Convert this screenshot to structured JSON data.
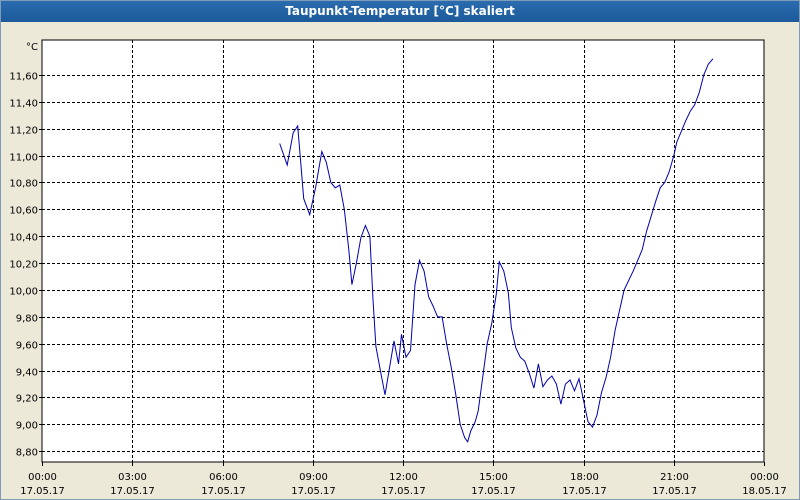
{
  "window": {
    "title": "Taupunkt-Temperatur [°C] skaliert"
  },
  "colors": {
    "line": "#0000b0",
    "plot_bg": "#ffffff",
    "grid": "#000000",
    "title_bg": "#1f5f9f"
  },
  "chart_data": {
    "type": "line",
    "title": "Taupunkt-Temperatur [°C] skaliert",
    "ylabel": "°C",
    "xlabel": "",
    "grid": true,
    "ylim": [
      8.72,
      11.86
    ],
    "xlim": [
      0,
      24
    ],
    "y_ticks": [
      "8,80",
      "9,00",
      "9,20",
      "9,40",
      "9,60",
      "9,80",
      "10,00",
      "10,20",
      "10,40",
      "10,60",
      "10,80",
      "11,00",
      "11,20",
      "11,40",
      "11,60"
    ],
    "y_tick_values": [
      8.8,
      9.0,
      9.2,
      9.4,
      9.6,
      9.8,
      10.0,
      10.2,
      10.4,
      10.6,
      10.8,
      11.0,
      11.2,
      11.4,
      11.6
    ],
    "x_ticks": [
      {
        "time": "00:00",
        "date": "17.05.17",
        "hour": 0
      },
      {
        "time": "03:00",
        "date": "17.05.17",
        "hour": 3
      },
      {
        "time": "06:00",
        "date": "17.05.17",
        "hour": 6
      },
      {
        "time": "09:00",
        "date": "17.05.17",
        "hour": 9
      },
      {
        "time": "12:00",
        "date": "17.05.17",
        "hour": 12
      },
      {
        "time": "15:00",
        "date": "17.05.17",
        "hour": 15
      },
      {
        "time": "18:00",
        "date": "17.05.17",
        "hour": 18
      },
      {
        "time": "21:00",
        "date": "17.05.17",
        "hour": 21
      },
      {
        "time": "00:00",
        "date": "18.05.17",
        "hour": 24
      }
    ],
    "series": [
      {
        "points": [
          [
            7.9,
            11.09
          ],
          [
            8.15,
            10.93
          ],
          [
            8.35,
            11.17
          ],
          [
            8.5,
            11.22
          ],
          [
            8.7,
            10.68
          ],
          [
            8.9,
            10.56
          ],
          [
            9.1,
            10.77
          ],
          [
            9.3,
            11.03
          ],
          [
            9.45,
            10.95
          ],
          [
            9.6,
            10.8
          ],
          [
            9.75,
            10.76
          ],
          [
            9.9,
            10.78
          ],
          [
            10.05,
            10.6
          ],
          [
            10.2,
            10.3
          ],
          [
            10.3,
            10.04
          ],
          [
            10.45,
            10.2
          ],
          [
            10.6,
            10.39
          ],
          [
            10.75,
            10.48
          ],
          [
            10.9,
            10.4
          ],
          [
            11.0,
            9.94
          ],
          [
            11.1,
            9.58
          ],
          [
            11.25,
            9.4
          ],
          [
            11.4,
            9.22
          ],
          [
            11.55,
            9.42
          ],
          [
            11.7,
            9.62
          ],
          [
            11.85,
            9.45
          ],
          [
            11.95,
            9.67
          ],
          [
            12.1,
            9.5
          ],
          [
            12.25,
            9.55
          ],
          [
            12.4,
            10.04
          ],
          [
            12.55,
            10.22
          ],
          [
            12.7,
            10.14
          ],
          [
            12.85,
            9.95
          ],
          [
            13.0,
            9.88
          ],
          [
            13.15,
            9.8
          ],
          [
            13.3,
            9.8
          ],
          [
            13.45,
            9.6
          ],
          [
            13.6,
            9.43
          ],
          [
            13.75,
            9.23
          ],
          [
            13.9,
            9.0
          ],
          [
            14.05,
            8.9
          ],
          [
            14.15,
            8.87
          ],
          [
            14.25,
            8.95
          ],
          [
            14.4,
            9.02
          ],
          [
            14.5,
            9.1
          ],
          [
            14.65,
            9.35
          ],
          [
            14.8,
            9.6
          ],
          [
            14.95,
            9.75
          ],
          [
            15.1,
            9.97
          ],
          [
            15.2,
            10.21
          ],
          [
            15.35,
            10.14
          ],
          [
            15.5,
            9.98
          ],
          [
            15.6,
            9.72
          ],
          [
            15.75,
            9.57
          ],
          [
            15.9,
            9.5
          ],
          [
            16.05,
            9.47
          ],
          [
            16.2,
            9.38
          ],
          [
            16.35,
            9.27
          ],
          [
            16.5,
            9.45
          ],
          [
            16.65,
            9.28
          ],
          [
            16.8,
            9.33
          ],
          [
            16.95,
            9.36
          ],
          [
            17.1,
            9.3
          ],
          [
            17.25,
            9.15
          ],
          [
            17.4,
            9.3
          ],
          [
            17.55,
            9.33
          ],
          [
            17.7,
            9.25
          ],
          [
            17.85,
            9.34
          ],
          [
            18.0,
            9.18
          ],
          [
            18.15,
            9.02
          ],
          [
            18.3,
            8.98
          ],
          [
            18.45,
            9.07
          ],
          [
            18.6,
            9.24
          ],
          [
            18.75,
            9.35
          ],
          [
            18.9,
            9.5
          ],
          [
            19.05,
            9.7
          ],
          [
            19.2,
            9.85
          ],
          [
            19.35,
            10.0
          ],
          [
            19.5,
            10.07
          ],
          [
            19.65,
            10.14
          ],
          [
            19.8,
            10.22
          ],
          [
            19.95,
            10.3
          ],
          [
            20.1,
            10.44
          ],
          [
            20.25,
            10.55
          ],
          [
            20.4,
            10.66
          ],
          [
            20.55,
            10.76
          ],
          [
            20.7,
            10.8
          ],
          [
            20.85,
            10.88
          ],
          [
            21.0,
            11.0
          ],
          [
            21.1,
            11.1
          ],
          [
            21.25,
            11.18
          ],
          [
            21.4,
            11.26
          ],
          [
            21.55,
            11.33
          ],
          [
            21.7,
            11.38
          ],
          [
            21.85,
            11.47
          ],
          [
            22.0,
            11.6
          ],
          [
            22.15,
            11.68
          ],
          [
            22.3,
            11.72
          ]
        ]
      }
    ]
  }
}
